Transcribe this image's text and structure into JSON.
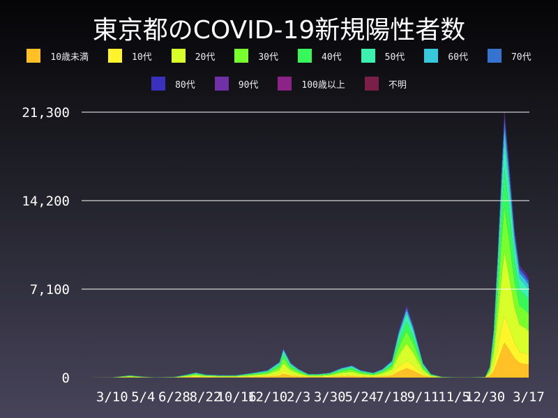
{
  "chart_data": {
    "type": "area",
    "stacked": true,
    "title": "東京都のCOVID-19新規陽性者数",
    "xlabel": "",
    "ylabel": "",
    "ylim": [
      0,
      21300
    ],
    "yticks": [
      "0",
      "7,100",
      "14,200",
      "21,300"
    ],
    "ytick_values": [
      0,
      7100,
      14200,
      21300
    ],
    "xticks": [
      "3/10",
      "5/4",
      "6/28",
      "8/22",
      "10/16",
      "12/10",
      "2/3",
      "3/30",
      "5/24",
      "7/18",
      "9/11",
      "11/5",
      "12/30",
      "3/17"
    ],
    "xtick_dates": [
      "2020-03-10",
      "2020-05-04",
      "2020-06-28",
      "2020-08-22",
      "2020-10-16",
      "2020-12-10",
      "2021-02-03",
      "2021-03-30",
      "2021-05-24",
      "2021-07-18",
      "2021-09-11",
      "2021-11-05",
      "2021-12-30",
      "2022-03-17"
    ],
    "xlim": [
      "2020-01-16",
      "2022-03-17"
    ],
    "grid": "horizontal",
    "legend_position": "top",
    "x": [
      "2020-01-16",
      "2020-02-15",
      "2020-03-10",
      "2020-04-10",
      "2020-05-04",
      "2020-05-25",
      "2020-06-28",
      "2020-07-20",
      "2020-08-05",
      "2020-08-22",
      "2020-09-15",
      "2020-10-16",
      "2020-11-15",
      "2020-12-10",
      "2020-12-31",
      "2021-01-07",
      "2021-01-20",
      "2021-02-03",
      "2021-02-20",
      "2021-03-10",
      "2021-03-30",
      "2021-04-20",
      "2021-05-08",
      "2021-05-24",
      "2021-06-15",
      "2021-07-01",
      "2021-07-18",
      "2021-07-30",
      "2021-08-13",
      "2021-08-25",
      "2021-09-11",
      "2021-09-25",
      "2021-10-15",
      "2021-11-05",
      "2021-12-01",
      "2021-12-30",
      "2022-01-07",
      "2022-01-14",
      "2022-01-21",
      "2022-01-28",
      "2022-02-02",
      "2022-02-10",
      "2022-02-20",
      "2022-03-01",
      "2022-03-10",
      "2022-03-17"
    ],
    "total": [
      0,
      5,
      20,
      190,
      80,
      10,
      60,
      250,
      420,
      250,
      200,
      200,
      400,
      600,
      1300,
      2400,
      1200,
      700,
      300,
      300,
      400,
      800,
      1000,
      600,
      400,
      700,
      1400,
      3800,
      5800,
      4200,
      1200,
      300,
      60,
      25,
      15,
      60,
      900,
      4000,
      10000,
      17000,
      21500,
      17500,
      12000,
      9000,
      8500,
      8000
    ],
    "series": [
      {
        "name": "10歳未満",
        "color": "#ffc125",
        "share": 0.13
      },
      {
        "name": "10代",
        "color": "#fff52a",
        "share": 0.1
      },
      {
        "name": "20代",
        "color": "#d9ff2a",
        "share": 0.24
      },
      {
        "name": "30代",
        "color": "#7aff2e",
        "share": 0.17
      },
      {
        "name": "40代",
        "color": "#38f75a",
        "share": 0.14
      },
      {
        "name": "50代",
        "color": "#3cf0b0",
        "share": 0.1
      },
      {
        "name": "60代",
        "color": "#38c8dc",
        "share": 0.05
      },
      {
        "name": "70代",
        "color": "#3673d0",
        "share": 0.035
      },
      {
        "name": "80代",
        "color": "#3a30c0",
        "share": 0.02
      },
      {
        "name": "90代",
        "color": "#7030a8",
        "share": 0.008
      },
      {
        "name": "100歳以上",
        "color": "#8c2488",
        "share": 0.002
      },
      {
        "name": "不明",
        "color": "#7a2048",
        "share": 0.005
      }
    ]
  }
}
